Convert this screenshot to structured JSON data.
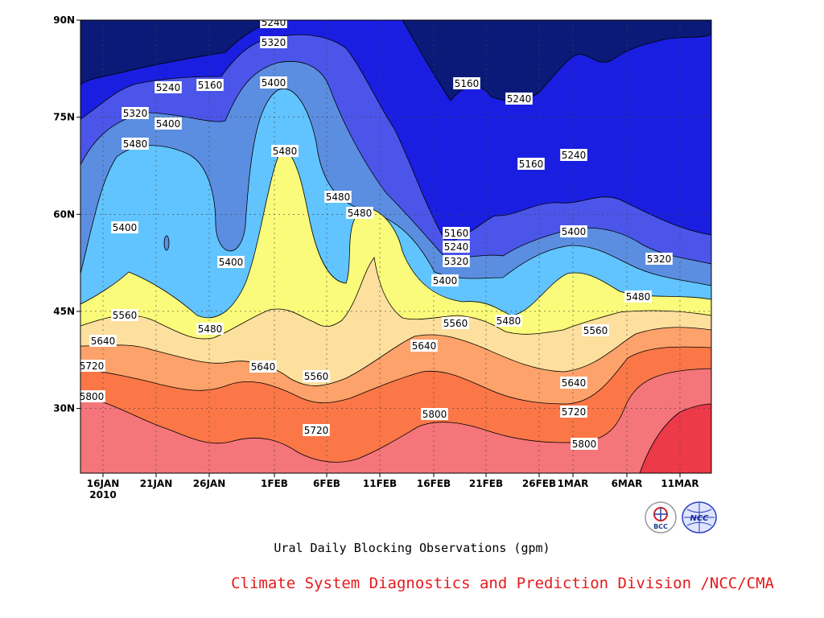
{
  "chart_data": {
    "type": "heatmap",
    "plot_kind": "filled-contour",
    "title": "Ural Daily Blocking Observations (gpm)",
    "x_axis": {
      "ticks": [
        "16JAN",
        "21JAN",
        "26JAN",
        "1FEB",
        "6FEB",
        "11FEB",
        "16FEB",
        "21FEB",
        "26FEB",
        "1MAR",
        "6MAR",
        "11MAR"
      ],
      "year_label": "2010"
    },
    "y_axis": {
      "ticks": [
        "30N",
        "45N",
        "60N",
        "75N",
        "90N"
      ],
      "ylim_deg": [
        20,
        90
      ]
    },
    "grid": "dotted",
    "contour_interval_gpm": 80,
    "color_bands": [
      {
        "range": "< 5160",
        "color": "#0b1a78"
      },
      {
        "range": "5160-5240",
        "color": "#1a1ee0"
      },
      {
        "range": "5240-5320",
        "color": "#4b55ea"
      },
      {
        "range": "5320-5400",
        "color": "#5b8ee0"
      },
      {
        "range": "5400-5480",
        "color": "#62c4ff"
      },
      {
        "range": "5480-5560",
        "color": "#fbfb7b"
      },
      {
        "range": "5560-5640",
        "color": "#fde09d"
      },
      {
        "range": "5640-5720",
        "color": "#fda26a"
      },
      {
        "range": "5720-5800",
        "color": "#fb7747"
      },
      {
        "range": "5800-5880",
        "color": "#f4757a"
      },
      {
        "range": "> 5880",
        "color": "#ec3a49"
      }
    ],
    "contour_labels": [
      "5240",
      "5320",
      "5240",
      "5160",
      "5400",
      "5320",
      "5400",
      "5480",
      "5480",
      "5400",
      "5480",
      "5400",
      "5480",
      "5160",
      "5240",
      "5160",
      "5240",
      "5160",
      "5240",
      "5320",
      "5400",
      "5400",
      "5320",
      "5480",
      "5560",
      "5480",
      "5560",
      "5480",
      "5560",
      "5640",
      "5720",
      "5800",
      "5640",
      "5560",
      "5720",
      "5800",
      "5640",
      "5720",
      "5800",
      "5640"
    ]
  },
  "footer": {
    "caption": "Ural Daily Blocking Observations (gpm)",
    "credit": "Climate System Diagnostics and Prediction Division /NCC/CMA"
  },
  "logos": {
    "left_text": "BCC",
    "right_text": "NCC"
  }
}
